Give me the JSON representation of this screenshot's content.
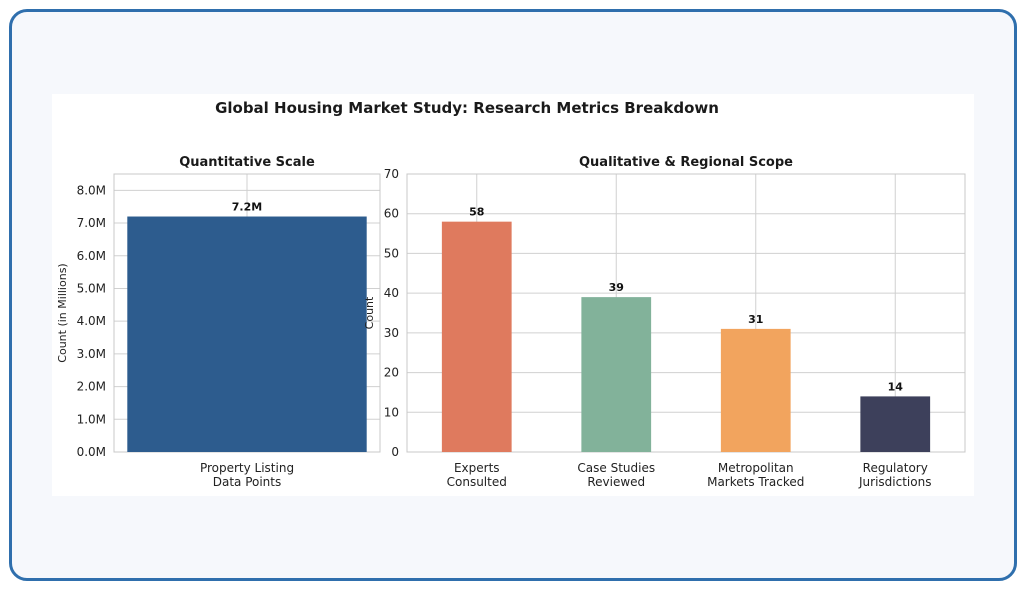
{
  "figure": {
    "title": "Global Housing Market Study: Research Metrics Breakdown"
  },
  "chart_data": [
    {
      "type": "bar",
      "title": "Quantitative Scale",
      "xlabel": "",
      "ylabel": "Count (in Millions)",
      "categories": [
        "Property Listing\nData Points"
      ],
      "values": [
        7.2
      ],
      "data_labels": [
        "7.2M"
      ],
      "ylim": [
        0,
        8.5
      ],
      "yticks": [
        0,
        1,
        2,
        3,
        4,
        5,
        6,
        7,
        8
      ],
      "ytick_labels": [
        "0.0M",
        "1.0M",
        "2.0M",
        "3.0M",
        "4.0M",
        "5.0M",
        "6.0M",
        "7.0M",
        "8.0M"
      ],
      "colors": [
        "#2d5c8e"
      ],
      "grid": true
    },
    {
      "type": "bar",
      "title": "Qualitative & Regional Scope",
      "xlabel": "",
      "ylabel": "Count",
      "categories": [
        "Experts\nConsulted",
        "Case Studies\nReviewed",
        "Metropolitan\nMarkets Tracked",
        "Regulatory\nJurisdictions"
      ],
      "values": [
        58,
        39,
        31,
        14
      ],
      "data_labels": [
        "58",
        "39",
        "31",
        "14"
      ],
      "ylim": [
        0,
        70
      ],
      "yticks": [
        0,
        10,
        20,
        30,
        40,
        50,
        60,
        70
      ],
      "ytick_labels": [
        "0",
        "10",
        "20",
        "30",
        "40",
        "50",
        "60",
        "70"
      ],
      "colors": [
        "#df7a5e",
        "#82b29a",
        "#f2a45e",
        "#3d405b"
      ],
      "grid": true
    }
  ]
}
